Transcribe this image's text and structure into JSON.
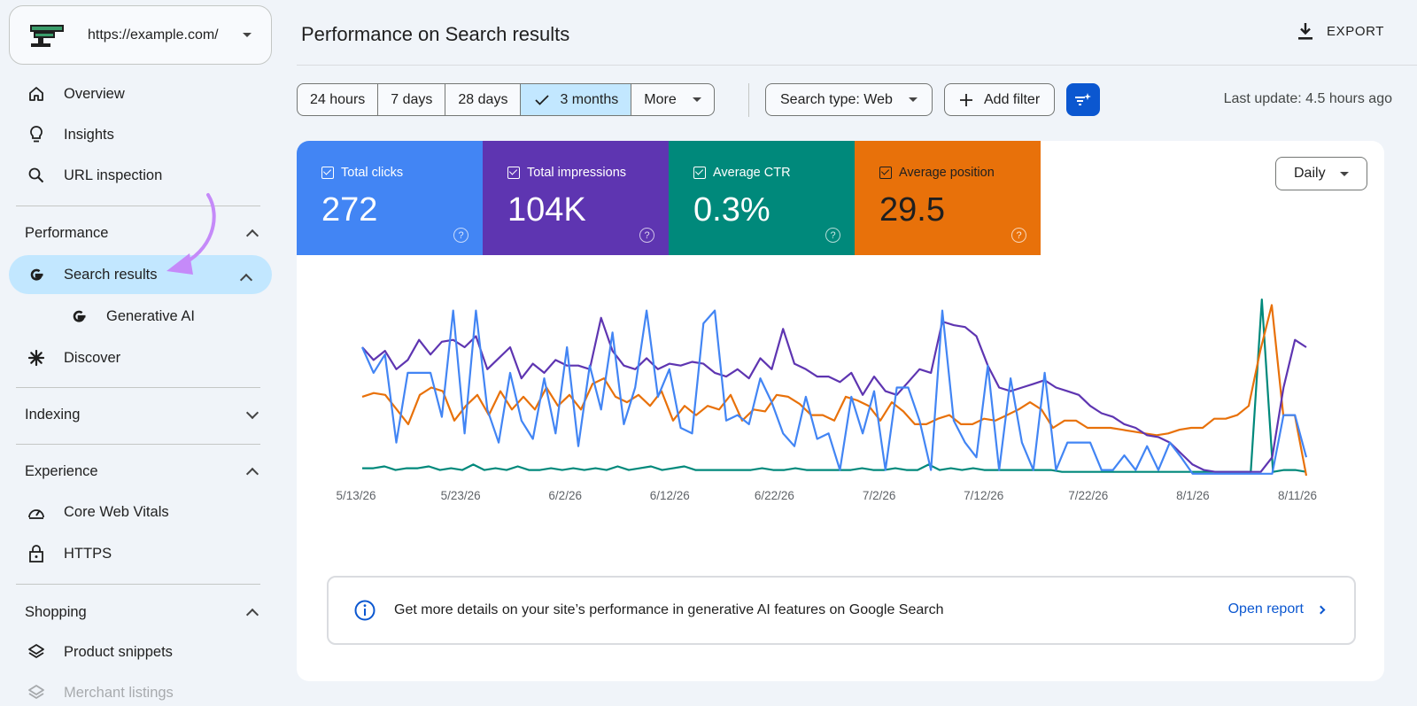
{
  "site": {
    "url": "https://example.com/",
    "logo_icon": "site-logo-icon"
  },
  "sidebar": {
    "top_items": [
      {
        "label": "Overview",
        "icon": "home-icon"
      },
      {
        "label": "Insights",
        "icon": "lightbulb-icon"
      },
      {
        "label": "URL inspection",
        "icon": "search-icon"
      }
    ],
    "performance": {
      "heading": "Performance",
      "items": [
        {
          "label": "Search results",
          "icon": "google-g-icon",
          "active": true
        },
        {
          "label": "Generative AI",
          "icon": "google-g-icon"
        },
        {
          "label": "Discover",
          "icon": "asterisk-icon"
        }
      ]
    },
    "indexing": {
      "heading": "Indexing"
    },
    "experience": {
      "heading": "Experience",
      "items": [
        {
          "label": "Core Web Vitals",
          "icon": "gauge-icon"
        },
        {
          "label": "HTTPS",
          "icon": "lock-icon"
        }
      ]
    },
    "shopping": {
      "heading": "Shopping",
      "items": [
        {
          "label": "Product snippets",
          "icon": "layers-icon"
        },
        {
          "label": "Merchant listings",
          "icon": "layers-icon"
        }
      ]
    },
    "annotation_arrow_color": "#c58af9"
  },
  "header": {
    "title": "Performance on Search results",
    "export_label": "EXPORT"
  },
  "filters": {
    "date_ranges": [
      "24 hours",
      "7 days",
      "28 days",
      "3 months"
    ],
    "selected_range": "3 months",
    "more_label": "More",
    "search_type": "Search type: Web",
    "add_filter": "Add filter",
    "last_update": "Last update: 4.5 hours ago"
  },
  "metrics": [
    {
      "label": "Total clicks",
      "value": "272",
      "color": "#4285f4"
    },
    {
      "label": "Total impressions",
      "value": "104K",
      "color": "#5e35b1"
    },
    {
      "label": "Average CTR",
      "value": "0.3%",
      "color": "#00897b"
    },
    {
      "label": "Average position",
      "value": "29.5",
      "color": "#e8710a"
    }
  ],
  "granularity": "Daily",
  "info_banner": {
    "text": "Get more details on your site’s performance in generative AI features on Google Search",
    "link": "Open report"
  },
  "chart_data": {
    "type": "line",
    "x_tick_labels": [
      "5/13/26",
      "5/23/26",
      "6/2/26",
      "6/12/26",
      "6/22/26",
      "7/2/26",
      "7/12/26",
      "7/22/26",
      "8/1/26",
      "8/11/26"
    ],
    "y_axis_visible": false,
    "grid": false,
    "series": [
      {
        "name": "Total clicks",
        "color": "#4285f4",
        "values": [
          0.72,
          0.58,
          0.68,
          0.2,
          0.58,
          0.58,
          0.58,
          0.34,
          0.92,
          0.25,
          0.92,
          0.38,
          0.2,
          0.58,
          0.32,
          0.22,
          0.55,
          0.25,
          0.72,
          0.18,
          0.62,
          0.38,
          0.8,
          0.3,
          0.5,
          0.92,
          0.45,
          0.6,
          0.28,
          0.25,
          0.85,
          0.92,
          0.32,
          0.35,
          0.3,
          0.55,
          0.42,
          0.25,
          0.18,
          0.45,
          0.22,
          0.25,
          0.05,
          0.45,
          0.25,
          0.48,
          0.05,
          0.5,
          0.5,
          0.32,
          0.05,
          0.92,
          0.32,
          0.2,
          0.12,
          0.62,
          0.05,
          0.55,
          0.2,
          0.05,
          0.58,
          0.05,
          0.2,
          0.2,
          0.2,
          0.05,
          0.05,
          0.13,
          0.05,
          0.18,
          0.05,
          0.2,
          0.12,
          0.03,
          0.03,
          0.03,
          0.03,
          0.03,
          0.03,
          0.03,
          0.03,
          0.35,
          0.35,
          0.12
        ]
      },
      {
        "name": "Total impressions",
        "color": "#5e35b1",
        "values": [
          0.72,
          0.65,
          0.7,
          0.6,
          0.65,
          0.76,
          0.68,
          0.75,
          0.76,
          0.72,
          0.78,
          0.6,
          0.66,
          0.72,
          0.55,
          0.63,
          0.58,
          0.65,
          0.62,
          0.62,
          0.6,
          0.88,
          0.7,
          0.62,
          0.6,
          0.66,
          0.6,
          0.63,
          0.62,
          0.64,
          0.63,
          0.58,
          0.56,
          0.6,
          0.55,
          0.66,
          0.6,
          0.82,
          0.63,
          0.6,
          0.56,
          0.56,
          0.53,
          0.58,
          0.46,
          0.56,
          0.48,
          0.46,
          0.53,
          0.6,
          0.58,
          0.86,
          0.84,
          0.83,
          0.78,
          0.62,
          0.5,
          0.48,
          0.5,
          0.52,
          0.54,
          0.5,
          0.48,
          0.46,
          0.4,
          0.36,
          0.34,
          0.3,
          0.28,
          0.24,
          0.23,
          0.2,
          0.14,
          0.08,
          0.05,
          0.04,
          0.04,
          0.04,
          0.04,
          0.04,
          0.12,
          0.5,
          0.76,
          0.72
        ]
      },
      {
        "name": "Average CTR",
        "color": "#00897b",
        "values": [
          0.06,
          0.06,
          0.07,
          0.05,
          0.06,
          0.06,
          0.07,
          0.05,
          0.06,
          0.05,
          0.08,
          0.05,
          0.06,
          0.05,
          0.07,
          0.05,
          0.05,
          0.06,
          0.05,
          0.06,
          0.05,
          0.06,
          0.05,
          0.07,
          0.05,
          0.06,
          0.07,
          0.05,
          0.06,
          0.07,
          0.05,
          0.05,
          0.05,
          0.05,
          0.05,
          0.05,
          0.06,
          0.05,
          0.05,
          0.06,
          0.05,
          0.05,
          0.05,
          0.05,
          0.05,
          0.06,
          0.05,
          0.05,
          0.06,
          0.05,
          0.05,
          0.08,
          0.05,
          0.06,
          0.05,
          0.06,
          0.05,
          0.05,
          0.05,
          0.05,
          0.05,
          0.05,
          0.05,
          0.04,
          0.04,
          0.04,
          0.04,
          0.04,
          0.04,
          0.04,
          0.04,
          0.04,
          0.04,
          0.04,
          0.04,
          0.04,
          0.04,
          0.04,
          0.04,
          0.04,
          0.04,
          0.98,
          0.04,
          0.05,
          0.05,
          0.04
        ]
      },
      {
        "name": "Average position",
        "color": "#e8710a",
        "values": [
          0.45,
          0.47,
          0.46,
          0.38,
          0.3,
          0.46,
          0.5,
          0.48,
          0.32,
          0.4,
          0.46,
          0.35,
          0.48,
          0.38,
          0.45,
          0.38,
          0.5,
          0.4,
          0.46,
          0.38,
          0.52,
          0.55,
          0.45,
          0.42,
          0.46,
          0.4,
          0.48,
          0.32,
          0.4,
          0.35,
          0.4,
          0.38,
          0.46,
          0.32,
          0.38,
          0.37,
          0.46,
          0.45,
          0.41,
          0.35,
          0.35,
          0.32,
          0.45,
          0.43,
          0.4,
          0.32,
          0.42,
          0.37,
          0.3,
          0.3,
          0.33,
          0.35,
          0.3,
          0.3,
          0.33,
          0.32,
          0.35,
          0.38,
          0.42,
          0.38,
          0.28,
          0.32,
          0.32,
          0.28,
          0.28,
          0.28,
          0.27,
          0.26,
          0.25,
          0.24,
          0.25,
          0.27,
          0.28,
          0.28,
          0.33,
          0.33,
          0.35,
          0.4,
          0.7,
          0.95,
          0.35,
          0.35,
          0.02
        ]
      }
    ]
  }
}
